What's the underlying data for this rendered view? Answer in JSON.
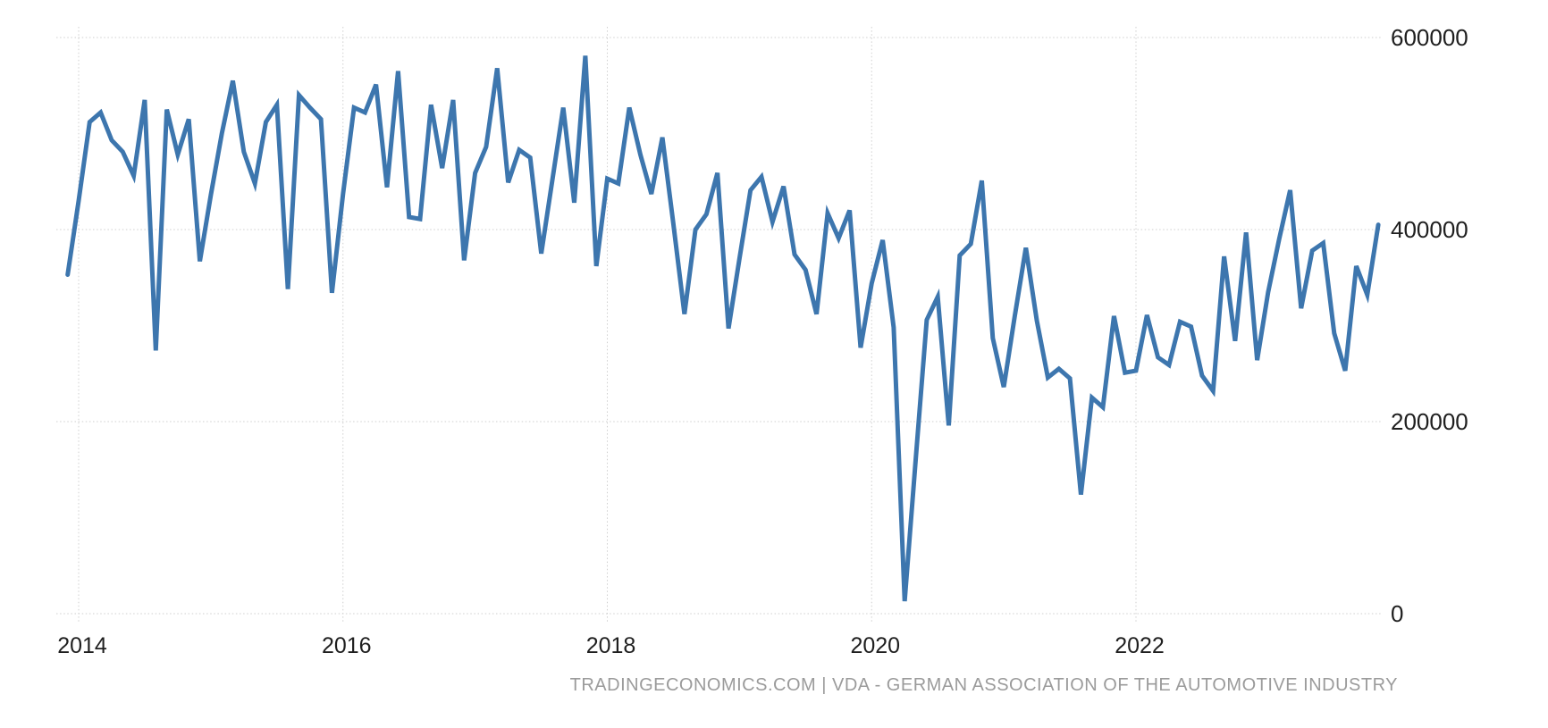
{
  "chart_data": {
    "type": "line",
    "title": "",
    "xlabel": "",
    "ylabel": "",
    "frequency": "monthly",
    "start": "2013-12",
    "end": "2023-11",
    "ylim": [
      0,
      600000
    ],
    "grid": true,
    "legend_position": "none",
    "line_color": "#3d76ae",
    "x_ticks": [
      {
        "label": "2014",
        "months_from_2014": 0
      },
      {
        "label": "2016",
        "months_from_2014": 24
      },
      {
        "label": "2018",
        "months_from_2014": 48
      },
      {
        "label": "2020",
        "months_from_2014": 72
      },
      {
        "label": "2022",
        "months_from_2014": 96
      }
    ],
    "y_ticks": [
      {
        "label": "0",
        "value": 0
      },
      {
        "label": "200000",
        "value": 200000
      },
      {
        "label": "400000",
        "value": 400000
      },
      {
        "label": "600000",
        "value": 600000
      }
    ],
    "values": [
      353000,
      430000,
      512000,
      522000,
      493000,
      481000,
      456000,
      535000,
      274000,
      525000,
      478000,
      515000,
      367000,
      436000,
      500000,
      555000,
      481000,
      448000,
      512000,
      530000,
      338000,
      540000,
      527000,
      515000,
      334000,
      437000,
      527000,
      522000,
      551000,
      444000,
      565000,
      413000,
      411000,
      530000,
      464000,
      535000,
      368000,
      459000,
      486000,
      568000,
      449000,
      483000,
      475000,
      375000,
      451000,
      527000,
      428000,
      581000,
      362000,
      453000,
      448000,
      527000,
      478000,
      437000,
      496000,
      406000,
      312000,
      400000,
      416000,
      459000,
      297000,
      370000,
      441000,
      455000,
      408000,
      445000,
      374000,
      358000,
      312000,
      417000,
      391000,
      420000,
      277000,
      344000,
      389000,
      298000,
      13000,
      160000,
      306000,
      330000,
      196000,
      373000,
      385000,
      451000,
      287000,
      236000,
      310000,
      381000,
      305000,
      246000,
      255000,
      245000,
      124000,
      225000,
      215000,
      310000,
      251000,
      253000,
      311000,
      267000,
      259000,
      304000,
      299000,
      248000,
      232000,
      372000,
      284000,
      397000,
      264000,
      335000,
      390000,
      441000,
      318000,
      378000,
      386000,
      292000,
      253000,
      362000,
      332000,
      405000
    ]
  },
  "footer": {
    "source": "TRADINGECONOMICS.COM",
    "separator": " | ",
    "attribution": "VDA - GERMAN ASSOCIATION OF THE AUTOMOTIVE INDUSTRY"
  }
}
